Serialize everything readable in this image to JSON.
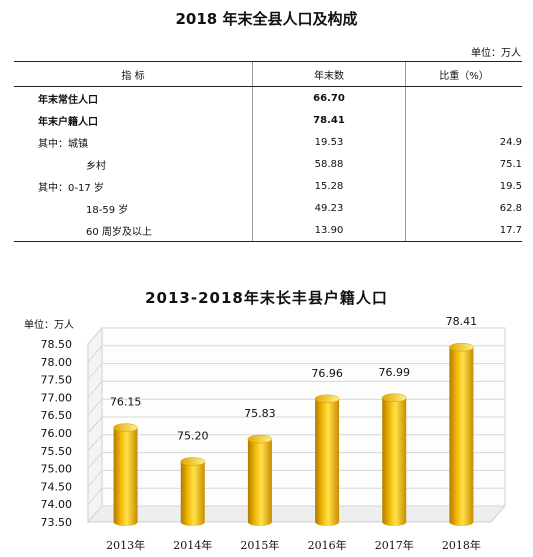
{
  "table": {
    "title": "2018 年末全县人口及构成",
    "unit": "单位：万人",
    "headers": [
      "指  标",
      "年末数",
      "比重（%）"
    ],
    "rows": [
      {
        "label": "年末常住人口",
        "value": "66.70",
        "share": "",
        "bold": true
      },
      {
        "label": "年末户籍人口",
        "value": "78.41",
        "share": "",
        "bold": true
      },
      {
        "label": "其中：城镇",
        "value": "19.53",
        "share": "24.9",
        "bold": false
      },
      {
        "label": "乡村",
        "value": "58.88",
        "share": "75.1",
        "bold": false
      },
      {
        "label": "其中：0-17 岁",
        "value": "15.28",
        "share": "19.5",
        "bold": false
      },
      {
        "label": "18-59 岁",
        "value": "49.23",
        "share": "62.8",
        "bold": false
      },
      {
        "label": "60 周岁及以上",
        "value": "13.90",
        "share": "17.7",
        "bold": false
      }
    ]
  },
  "chart_data": {
    "type": "bar",
    "title": "2013-2018年末长丰县户籍人口",
    "ylabel": "单位：万人",
    "categories": [
      "2013年",
      "2014年",
      "2015年",
      "2016年",
      "2017年",
      "2018年"
    ],
    "values": [
      76.15,
      75.2,
      75.83,
      76.96,
      76.99,
      78.41
    ],
    "value_labels": [
      "76.15",
      "75.20",
      "75.83",
      "76.96",
      "76.99",
      "78.41"
    ],
    "yticks": [
      "73.50",
      "74.00",
      "74.50",
      "75.00",
      "75.50",
      "76.00",
      "76.50",
      "77.00",
      "77.50",
      "78.00",
      "78.50"
    ],
    "ylim": [
      73.5,
      78.5
    ],
    "grid": true,
    "bar_color": "#F2B705"
  }
}
